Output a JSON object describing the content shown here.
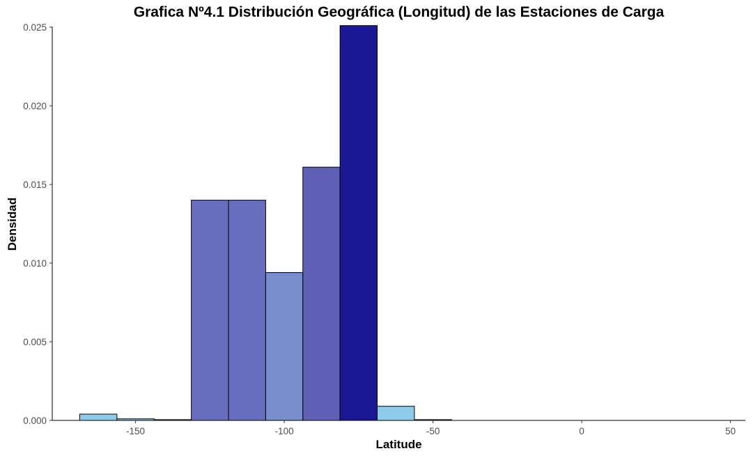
{
  "chart_data": {
    "type": "bar",
    "title": "Grafica Nº4.1 Distribución Geográfica (Longitud) de las Estaciones de Carga",
    "xlabel": "Latitude",
    "ylabel": "Densidad",
    "xlim": [
      -178,
      55
    ],
    "ylim": [
      0,
      0.025
    ],
    "x_ticks": [
      -150,
      -100,
      -50,
      0,
      50
    ],
    "x_tick_labels": [
      "-150",
      "-100",
      "-50",
      "0",
      "50"
    ],
    "y_ticks": [
      0,
      0.005,
      0.01,
      0.015,
      0.02,
      0.025
    ],
    "y_tick_labels": [
      "0.000",
      "0.005",
      "0.010",
      "0.015",
      "0.020",
      "0.025"
    ],
    "grid": false,
    "legend": "none",
    "bins": [
      {
        "x0": -168.75,
        "x1": -156.25,
        "value": 0.0004,
        "color": "#8ecbe8"
      },
      {
        "x0": -156.25,
        "x1": -143.75,
        "value": 0.0001,
        "color": "#8ecbe8"
      },
      {
        "x0": -143.75,
        "x1": -131.25,
        "value": 5e-05,
        "color": "#8ecbe8"
      },
      {
        "x0": -131.25,
        "x1": -118.75,
        "value": 0.014,
        "color": "#686ebe"
      },
      {
        "x0": -118.75,
        "x1": -106.25,
        "value": 0.014,
        "color": "#686ebe"
      },
      {
        "x0": -106.25,
        "x1": -93.75,
        "value": 0.0094,
        "color": "#778fcc"
      },
      {
        "x0": -93.75,
        "x1": -81.25,
        "value": 0.0161,
        "color": "#5e60b6"
      },
      {
        "x0": -81.25,
        "x1": -68.75,
        "value": 0.0251,
        "color": "#1a1892"
      },
      {
        "x0": -68.75,
        "x1": -56.25,
        "value": 0.0009,
        "color": "#8ecbe8"
      },
      {
        "x0": -56.25,
        "x1": -43.75,
        "value": 5e-05,
        "color": "#8ecbe8"
      }
    ]
  }
}
